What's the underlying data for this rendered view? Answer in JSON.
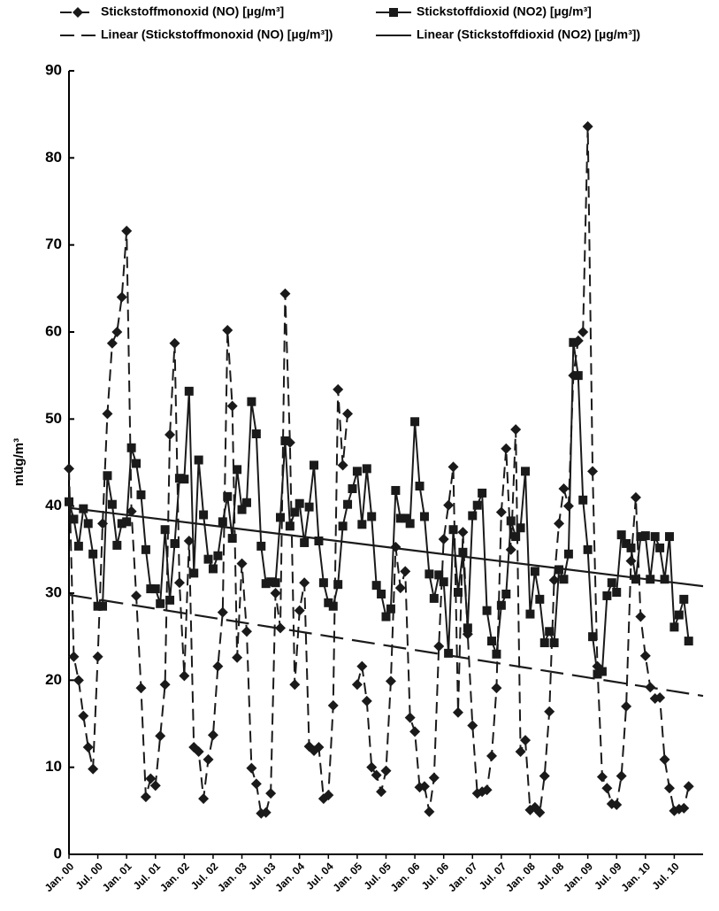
{
  "chart_data": {
    "type": "line",
    "y_label": "müg/m³",
    "ylim": [
      0,
      90
    ],
    "yticks": [
      0,
      10,
      20,
      30,
      40,
      50,
      60,
      70,
      80,
      90
    ],
    "grid": false,
    "legend": "top",
    "categories": [
      "Jan. 00",
      null,
      null,
      null,
      null,
      null,
      "Jul. 00",
      null,
      null,
      null,
      null,
      null,
      "Jan. 01",
      null,
      null,
      null,
      null,
      null,
      "Jul. 01",
      null,
      null,
      null,
      null,
      null,
      "Jan. 02",
      null,
      null,
      null,
      null,
      null,
      "Jul. 02",
      null,
      null,
      null,
      null,
      null,
      "Jan. 03",
      null,
      null,
      null,
      null,
      null,
      "Jul. 03",
      null,
      null,
      null,
      null,
      null,
      "Jan. 04",
      null,
      null,
      null,
      null,
      null,
      "Jul. 04",
      null,
      null,
      null,
      null,
      null,
      "Jan. 05",
      null,
      null,
      null,
      null,
      null,
      "Jul. 05",
      null,
      null,
      null,
      null,
      null,
      "Jan. 06",
      null,
      null,
      null,
      null,
      null,
      "Jul. 06",
      null,
      null,
      null,
      null,
      null,
      "Jan. 07",
      null,
      null,
      null,
      null,
      null,
      "Jul. 07",
      null,
      null,
      null,
      null,
      null,
      "Jan. 08",
      null,
      null,
      null,
      null,
      null,
      "Jul. 08",
      null,
      null,
      null,
      null,
      null,
      "Jan. 09",
      null,
      null,
      null,
      null,
      null,
      "Jul. 09",
      null,
      null,
      null,
      null,
      null,
      "Jan. 10",
      null,
      null,
      null,
      null,
      null,
      "Jul. 10",
      null,
      null,
      null,
      null,
      null
    ],
    "series": [
      {
        "name": "Stickstoffmonoxid (NO) [µg/m³]",
        "color": "#1a1a1a",
        "marker": "diamond",
        "dash": true,
        "values": [
          44.3,
          22.7,
          20,
          15.9,
          12.3,
          9.8,
          22.7,
          38,
          50.6,
          58.7,
          60,
          64,
          71.6,
          39.4,
          29.7,
          19.1,
          6.6,
          8.7,
          7.9,
          13.6,
          19.5,
          48.2,
          58.7,
          31.2,
          20.5,
          36,
          12.3,
          11.8,
          6.4,
          10.9,
          13.7,
          21.6,
          27.8,
          60.2,
          51.5,
          22.6,
          33.4,
          25.6,
          9.9,
          8.1,
          4.7,
          4.8,
          7,
          30,
          26,
          64.4,
          47.3,
          19.5,
          28,
          31.2,
          12.4,
          11.9,
          12.3,
          6.4,
          6.8,
          17.1,
          53.4,
          44.7,
          50.6,
          null,
          19.5,
          21.6,
          17.6,
          10,
          9.1,
          7.2,
          9.6,
          19.9,
          35.3,
          30.6,
          32.5,
          15.7,
          14.1,
          7.7,
          7.8,
          4.9,
          8.8,
          23.9,
          36.2,
          40.1,
          44.5,
          16.3,
          37,
          25.3,
          14.8,
          7,
          7.2,
          7.4,
          11.3,
          19.1,
          39.3,
          46.6,
          35,
          48.8,
          11.8,
          13.1,
          5.1,
          5.4,
          4.8,
          9,
          16.4,
          31.5,
          38,
          42,
          40,
          55,
          59,
          60,
          83.6,
          44,
          21.6,
          8.9,
          7.6,
          5.8,
          5.7,
          9,
          17,
          33.7,
          41,
          27.3,
          22.8,
          19.2,
          17.9,
          18,
          10.9,
          7.6,
          5,
          5.2,
          5.3,
          7.8,
          null,
          null
        ]
      },
      {
        "name": "Stickstoffdioxid (NO2) [µg/m³]",
        "color": "#1a1a1a",
        "marker": "square",
        "dash": false,
        "values": [
          40.5,
          38.5,
          35.4,
          39.7,
          38,
          34.5,
          28.5,
          28.5,
          43.5,
          40.2,
          35.5,
          38,
          38.2,
          46.7,
          44.9,
          41.3,
          35,
          30.5,
          30.5,
          28.8,
          37.3,
          29.2,
          35.7,
          43.2,
          43.1,
          53.2,
          32.3,
          45.3,
          39,
          33.9,
          32.8,
          34.3,
          38.2,
          41.1,
          36.3,
          44.2,
          39.6,
          40.4,
          52,
          48.3,
          35.4,
          31.1,
          31.3,
          31.2,
          38.7,
          47.5,
          37.7,
          39.3,
          40.3,
          35.8,
          39.9,
          44.7,
          36,
          31.2,
          28.9,
          28.5,
          31,
          37.7,
          40.2,
          42,
          44,
          37.9,
          44.3,
          38.8,
          30.9,
          29.9,
          27.3,
          28.2,
          41.8,
          38.6,
          38.6,
          38,
          49.7,
          42.3,
          38.8,
          32.2,
          29.4,
          32.1,
          31.3,
          23.1,
          37.3,
          30.1,
          34.7,
          26,
          38.9,
          40.1,
          41.5,
          28,
          24.5,
          23,
          28.6,
          29.9,
          38.3,
          36.5,
          37.5,
          44,
          27.6,
          32.5,
          29.3,
          24.3,
          25.6,
          24.3,
          32.7,
          31.6,
          34.5,
          58.8,
          55,
          40.7,
          35,
          25,
          20.7,
          21,
          29.7,
          31.2,
          30.1,
          36.7,
          35.7,
          35.2,
          31.6,
          36.5,
          36.6,
          31.6,
          36.5,
          35.2,
          31.6,
          36.5,
          26.1,
          27.5,
          29.3,
          24.5,
          null,
          null
        ]
      }
    ],
    "trendlines": [
      {
        "name": "Linear (Stickstoffmonoxid (NO) [µg/m³])",
        "color": "#1a1a1a",
        "dash": true,
        "x": [
          0,
          132
        ],
        "values": [
          29.8,
          18.2
        ]
      },
      {
        "name": "Linear (Stickstoffdioxid (NO2) [µg/m³])",
        "color": "#1a1a1a",
        "dash": false,
        "x": [
          0,
          132
        ],
        "values": [
          39.8,
          30.8
        ]
      }
    ]
  }
}
